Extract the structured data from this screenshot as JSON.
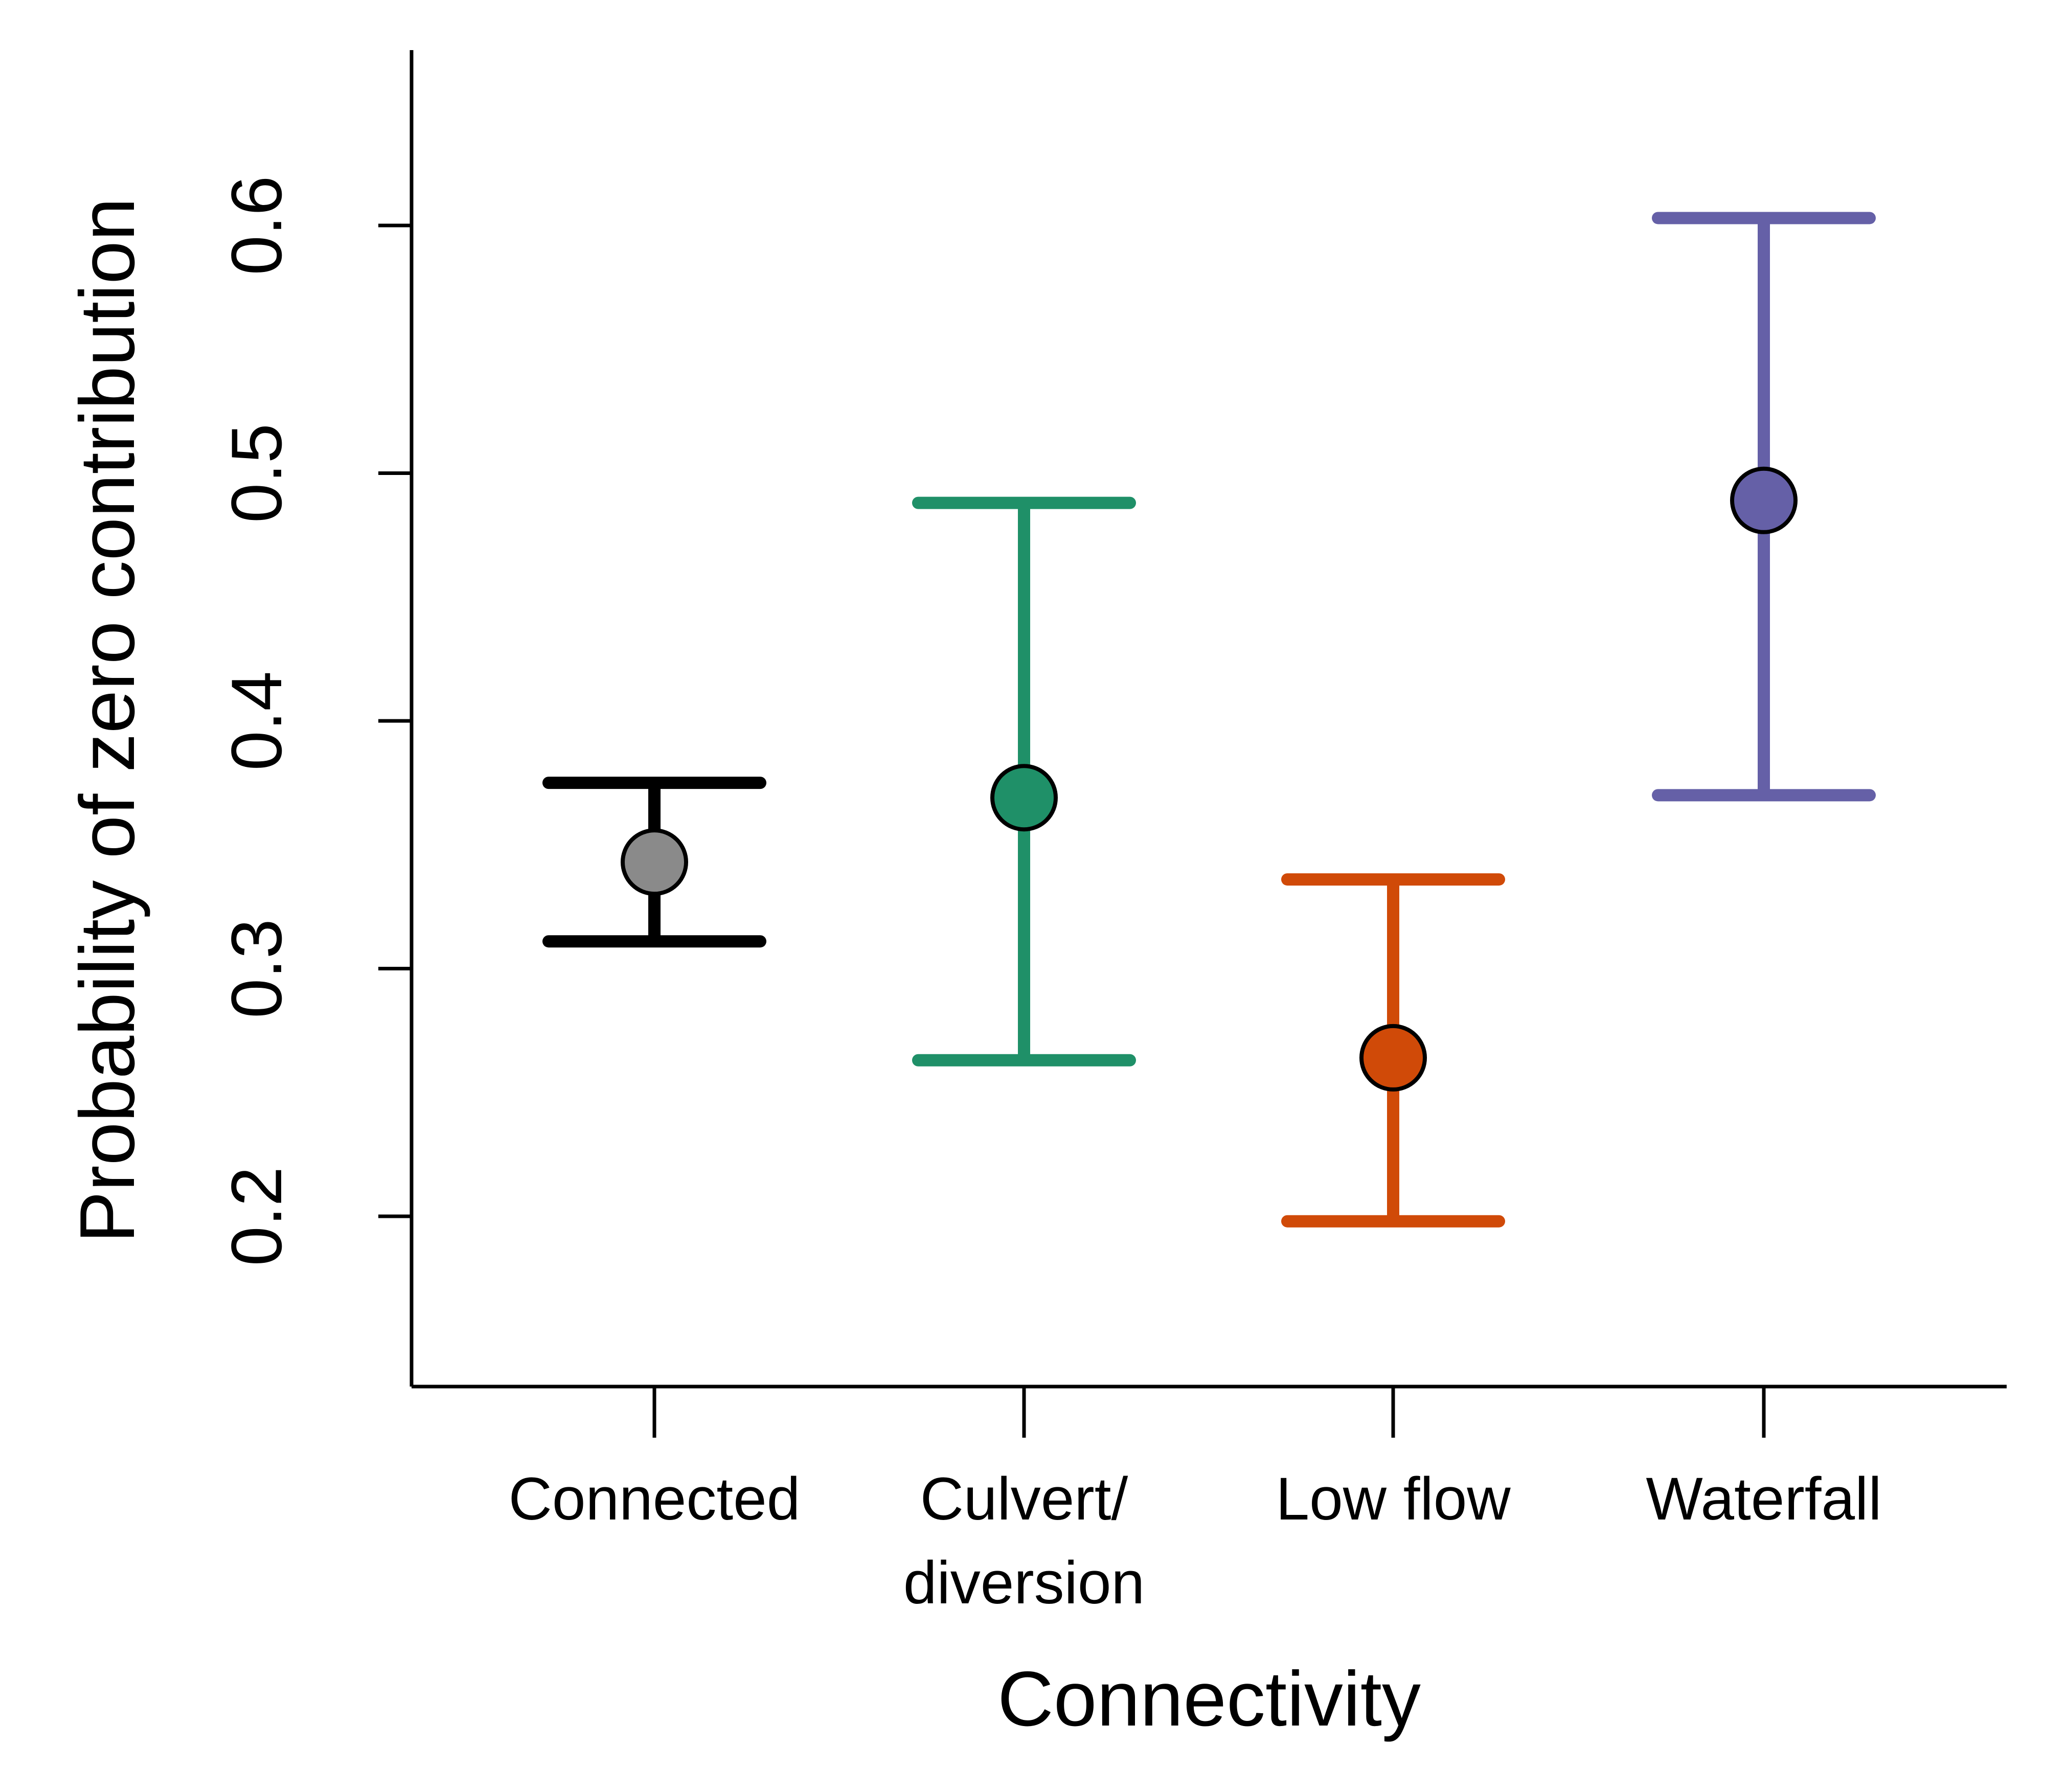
{
  "chart_data": {
    "type": "scatter",
    "subtype": "point-with-error-bars",
    "title": "",
    "xlabel": "Connectivity",
    "ylabel": "Probability of zero contribution",
    "ylim": [
      0.13,
      0.665
    ],
    "yticks": [
      0.2,
      0.3,
      0.4,
      0.5,
      0.6
    ],
    "ytick_labels": [
      "0.2",
      "0.3",
      "0.4",
      "0.5",
      "0.6"
    ],
    "categories": [
      {
        "label_lines": [
          "Connected"
        ],
        "point": 0.343,
        "lower": 0.311,
        "upper": 0.375,
        "bar_color": "#000000",
        "point_color": "#8a8a8a"
      },
      {
        "label_lines": [
          "Culvert/",
          "diversion"
        ],
        "point": 0.369,
        "lower": 0.263,
        "upper": 0.488,
        "bar_color": "#1f9068",
        "point_color": "#1f9068"
      },
      {
        "label_lines": [
          "Low flow"
        ],
        "point": 0.264,
        "lower": 0.198,
        "upper": 0.336,
        "bar_color": "#d04a08",
        "point_color": "#d04a08"
      },
      {
        "label_lines": [
          "Waterfall"
        ],
        "point": 0.489,
        "lower": 0.37,
        "upper": 0.603,
        "bar_color": "#6560a7",
        "point_color": "#6560a7"
      }
    ],
    "grid": false,
    "legend": "none"
  }
}
